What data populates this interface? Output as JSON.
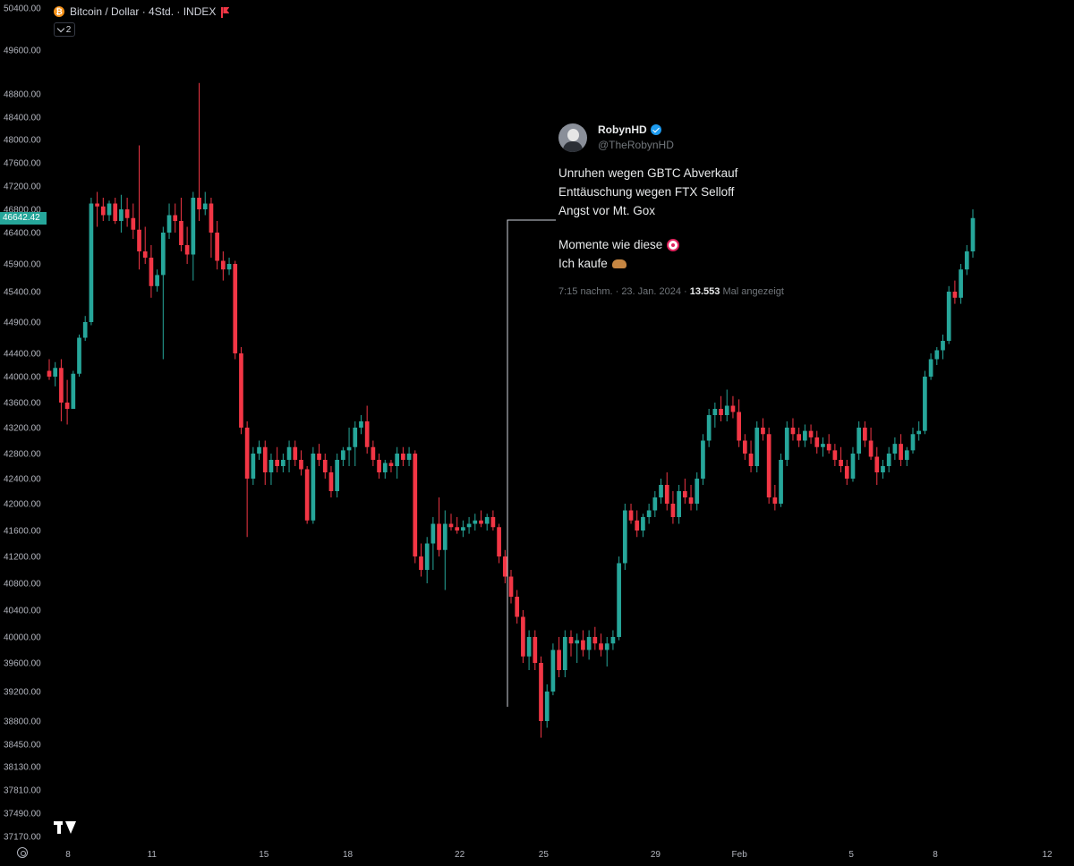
{
  "header": {
    "symbol_label": "Bitcoin / Dollar · 4Std. · INDEX",
    "collapse_count": "2",
    "symbol_icon": "bitcoin-icon",
    "flag_icon": "red-flag-icon"
  },
  "price_tag": "46642.42",
  "colors": {
    "up": "#26a69a",
    "down": "#f23645",
    "background": "#000000",
    "axis_text": "#b2b5be",
    "callout_line": "#d1d4dc"
  },
  "tweet": {
    "name": "RobynHD",
    "handle": "@TheRobynHD",
    "lines": [
      "Unruhen wegen GBTC Abverkauf",
      "Enttäuschung wegen FTX Selloff",
      "Angst vor Mt. Gox",
      "Momente wie diese",
      "Ich kaufe"
    ],
    "meta_prefix": "7:15 nachm. · 23. Jan. 2024 · ",
    "views": "13.553",
    "meta_suffix": " Mal angezeigt"
  },
  "chart_data": {
    "type": "candlestick",
    "title": "Bitcoin / Dollar · 4Std. · INDEX",
    "interval": "4h",
    "y_ticks": [
      50400,
      49600,
      48800,
      48400,
      48000,
      47600,
      47200,
      46800,
      46400,
      45900,
      45400,
      44900,
      44400,
      44000,
      43600,
      43200,
      42800,
      42400,
      42000,
      41600,
      41200,
      40800,
      40400,
      40000,
      39600,
      39200,
      38800,
      38450,
      38130,
      37810,
      37490,
      37170
    ],
    "y_tick_labels": [
      "50400.00",
      "49600.00",
      "48800.00",
      "48400.00",
      "48000.00",
      "47600.00",
      "47200.00",
      "46800.00",
      "46400.00",
      "45900.00",
      "45400.00",
      "44900.00",
      "44400.00",
      "44000.00",
      "43600.00",
      "43200.00",
      "42800.00",
      "42400.00",
      "42000.00",
      "41600.00",
      "41200.00",
      "40800.00",
      "40400.00",
      "40000.00",
      "39600.00",
      "39200.00",
      "38800.00",
      "38450.00",
      "38130.00",
      "37810.00",
      "37490.00",
      "37170.00"
    ],
    "x_tick_labels": [
      "8",
      "11",
      "15",
      "18",
      "22",
      "25",
      "29",
      "Feb",
      "5",
      "8",
      "12"
    ],
    "x_tick_days": [
      0,
      3,
      7,
      10,
      14,
      17,
      21,
      24,
      28,
      31,
      35
    ],
    "last_price": 46642.42,
    "ohlc": [
      [
        44100,
        44300,
        43950,
        44000
      ],
      [
        44000,
        44250,
        43850,
        44150
      ],
      [
        44150,
        44300,
        43300,
        43600
      ],
      [
        43600,
        43950,
        43250,
        43500
      ],
      [
        43500,
        44100,
        43500,
        44050
      ],
      [
        44050,
        44700,
        44000,
        44650
      ],
      [
        44650,
        45000,
        44600,
        44900
      ],
      [
        44900,
        47000,
        44850,
        46900
      ],
      [
        46900,
        47100,
        46500,
        46850
      ],
      [
        46850,
        47000,
        46600,
        46700
      ],
      [
        46700,
        46950,
        46600,
        46900
      ],
      [
        46900,
        47000,
        46550,
        46600
      ],
      [
        46600,
        47050,
        46400,
        46800
      ],
      [
        46800,
        47000,
        46500,
        46650
      ],
      [
        46650,
        46900,
        46300,
        46450
      ],
      [
        46450,
        47900,
        45800,
        46100
      ],
      [
        46100,
        46500,
        45900,
        46000
      ],
      [
        46000,
        46200,
        45300,
        45500
      ],
      [
        45500,
        45800,
        45400,
        45700
      ],
      [
        45700,
        46500,
        44300,
        46400
      ],
      [
        46400,
        46900,
        46300,
        46700
      ],
      [
        46700,
        46900,
        46400,
        46600
      ],
      [
        46600,
        47000,
        46100,
        46200
      ],
      [
        46200,
        46500,
        45900,
        46050
      ],
      [
        46050,
        47100,
        45600,
        47000
      ],
      [
        47000,
        49000,
        46600,
        46800
      ],
      [
        46800,
        47100,
        46700,
        46900
      ],
      [
        46900,
        47000,
        46000,
        46400
      ],
      [
        46400,
        46600,
        45800,
        45950
      ],
      [
        45950,
        46100,
        45600,
        45800
      ],
      [
        45800,
        46000,
        45700,
        45900
      ],
      [
        45900,
        45950,
        44300,
        44400
      ],
      [
        44400,
        44500,
        43100,
        43200
      ],
      [
        43200,
        43300,
        41500,
        42400
      ],
      [
        42400,
        42900,
        42300,
        42800
      ],
      [
        42800,
        43000,
        42700,
        42900
      ],
      [
        42900,
        43000,
        42300,
        42500
      ],
      [
        42500,
        42800,
        42300,
        42700
      ],
      [
        42700,
        42900,
        42500,
        42600
      ],
      [
        42600,
        42800,
        42500,
        42700
      ],
      [
        42700,
        43000,
        42500,
        42900
      ],
      [
        42900,
        43000,
        42600,
        42700
      ],
      [
        42700,
        42850,
        42450,
        42550
      ],
      [
        42550,
        42600,
        41700,
        41750
      ],
      [
        41750,
        42900,
        41700,
        42800
      ],
      [
        42800,
        42950,
        42600,
        42700
      ],
      [
        42700,
        42800,
        42400,
        42500
      ],
      [
        42500,
        42600,
        42100,
        42200
      ],
      [
        42200,
        42800,
        42100,
        42700
      ],
      [
        42700,
        42900,
        42600,
        42850
      ],
      [
        42850,
        43200,
        42600,
        42900
      ],
      [
        42900,
        43300,
        42600,
        43200
      ],
      [
        43200,
        43400,
        43100,
        43300
      ],
      [
        43300,
        43550,
        42800,
        42900
      ],
      [
        42900,
        43000,
        42600,
        42700
      ],
      [
        42700,
        42800,
        42400,
        42500
      ],
      [
        42500,
        42700,
        42400,
        42650
      ],
      [
        42650,
        42700,
        42500,
        42600
      ],
      [
        42600,
        42900,
        42400,
        42800
      ],
      [
        42800,
        42900,
        42600,
        42700
      ],
      [
        42700,
        42900,
        42600,
        42800
      ],
      [
        42800,
        42850,
        41100,
        41200
      ],
      [
        41200,
        41400,
        40900,
        41000
      ],
      [
        41000,
        41500,
        40800,
        41400
      ],
      [
        41400,
        41800,
        41000,
        41700
      ],
      [
        41700,
        42100,
        41200,
        41300
      ],
      [
        41300,
        41900,
        40700,
        41700
      ],
      [
        41700,
        41850,
        41600,
        41650
      ],
      [
        41650,
        41800,
        41550,
        41600
      ],
      [
        41600,
        41750,
        41500,
        41650
      ],
      [
        41650,
        41800,
        41550,
        41700
      ],
      [
        41700,
        41850,
        41600,
        41750
      ],
      [
        41750,
        41900,
        41650,
        41700
      ],
      [
        41700,
        41850,
        41600,
        41800
      ],
      [
        41800,
        41900,
        41600,
        41650
      ],
      [
        41650,
        41700,
        41100,
        41200
      ],
      [
        41200,
        41300,
        40800,
        40900
      ],
      [
        40900,
        41000,
        40500,
        40600
      ],
      [
        40600,
        40700,
        40200,
        40300
      ],
      [
        40300,
        40400,
        39600,
        39700
      ],
      [
        39700,
        40100,
        39500,
        40000
      ],
      [
        40000,
        40100,
        39500,
        39600
      ],
      [
        39600,
        39700,
        38550,
        38800
      ],
      [
        38800,
        39300,
        38700,
        39200
      ],
      [
        39200,
        39900,
        39150,
        39800
      ],
      [
        39800,
        40000,
        39400,
        39500
      ],
      [
        39500,
        40100,
        39400,
        40000
      ],
      [
        40000,
        40100,
        39700,
        39900
      ],
      [
        39900,
        40050,
        39600,
        39950
      ],
      [
        39950,
        40100,
        39700,
        39800
      ],
      [
        39800,
        40100,
        39650,
        40000
      ],
      [
        40000,
        40150,
        39800,
        39900
      ],
      [
        39900,
        40050,
        39700,
        39800
      ],
      [
        39800,
        40000,
        39550,
        39900
      ],
      [
        39900,
        40100,
        39800,
        40000
      ],
      [
        40000,
        41200,
        39950,
        41100
      ],
      [
        41100,
        42000,
        41000,
        41900
      ],
      [
        41900,
        42000,
        41700,
        41750
      ],
      [
        41750,
        41900,
        41500,
        41600
      ],
      [
        41600,
        41850,
        41500,
        41800
      ],
      [
        41800,
        42000,
        41700,
        41900
      ],
      [
        41900,
        42200,
        41800,
        42100
      ],
      [
        42100,
        42400,
        42000,
        42300
      ],
      [
        42300,
        42500,
        41900,
        42000
      ],
      [
        42000,
        42200,
        41700,
        41800
      ],
      [
        41800,
        42300,
        41700,
        42200
      ],
      [
        42200,
        42400,
        42000,
        42100
      ],
      [
        42100,
        42300,
        41900,
        42000
      ],
      [
        42000,
        42500,
        41900,
        42400
      ],
      [
        42400,
        43100,
        42300,
        43000
      ],
      [
        43000,
        43500,
        42900,
        43400
      ],
      [
        43400,
        43600,
        43200,
        43500
      ],
      [
        43500,
        43700,
        43300,
        43400
      ],
      [
        43400,
        43800,
        43300,
        43550
      ],
      [
        43550,
        43700,
        43350,
        43450
      ],
      [
        43450,
        43650,
        42900,
        43000
      ],
      [
        43000,
        43100,
        42700,
        42800
      ],
      [
        42800,
        43000,
        42500,
        42600
      ],
      [
        42600,
        43300,
        42500,
        43200
      ],
      [
        43200,
        43350,
        43000,
        43100
      ],
      [
        43100,
        43200,
        42000,
        42100
      ],
      [
        42100,
        42300,
        41900,
        42000
      ],
      [
        42000,
        42800,
        41950,
        42700
      ],
      [
        42700,
        43300,
        42600,
        43200
      ],
      [
        43200,
        43350,
        43000,
        43100
      ],
      [
        43100,
        43200,
        42900,
        43000
      ],
      [
        43000,
        43250,
        42900,
        43150
      ],
      [
        43150,
        43250,
        42950,
        43050
      ],
      [
        43050,
        43150,
        42800,
        42900
      ],
      [
        42900,
        43050,
        42750,
        42950
      ],
      [
        42950,
        43100,
        42800,
        42850
      ],
      [
        42850,
        42950,
        42600,
        42700
      ],
      [
        42700,
        42900,
        42500,
        42600
      ],
      [
        42600,
        42700,
        42300,
        42400
      ],
      [
        42400,
        42900,
        42350,
        42800
      ],
      [
        42800,
        43300,
        42700,
        43200
      ],
      [
        43200,
        43300,
        42900,
        43000
      ],
      [
        43000,
        43200,
        42700,
        42750
      ],
      [
        42750,
        42900,
        42300,
        42500
      ],
      [
        42500,
        42700,
        42400,
        42600
      ],
      [
        42600,
        42900,
        42500,
        42800
      ],
      [
        42800,
        43050,
        42700,
        42950
      ],
      [
        42950,
        43100,
        42600,
        42700
      ],
      [
        42700,
        42900,
        42600,
        42850
      ],
      [
        42850,
        43200,
        42800,
        43100
      ],
      [
        43100,
        43300,
        43000,
        43150
      ],
      [
        43150,
        44100,
        43100,
        44000
      ],
      [
        44000,
        44400,
        43950,
        44300
      ],
      [
        44300,
        44500,
        44200,
        44450
      ],
      [
        44450,
        44700,
        44300,
        44600
      ],
      [
        44600,
        45500,
        44550,
        45400
      ],
      [
        45400,
        45600,
        45200,
        45300
      ],
      [
        45300,
        45900,
        45200,
        45800
      ],
      [
        45800,
        46200,
        45700,
        46100
      ],
      [
        46100,
        46800,
        46000,
        46650
      ]
    ]
  }
}
